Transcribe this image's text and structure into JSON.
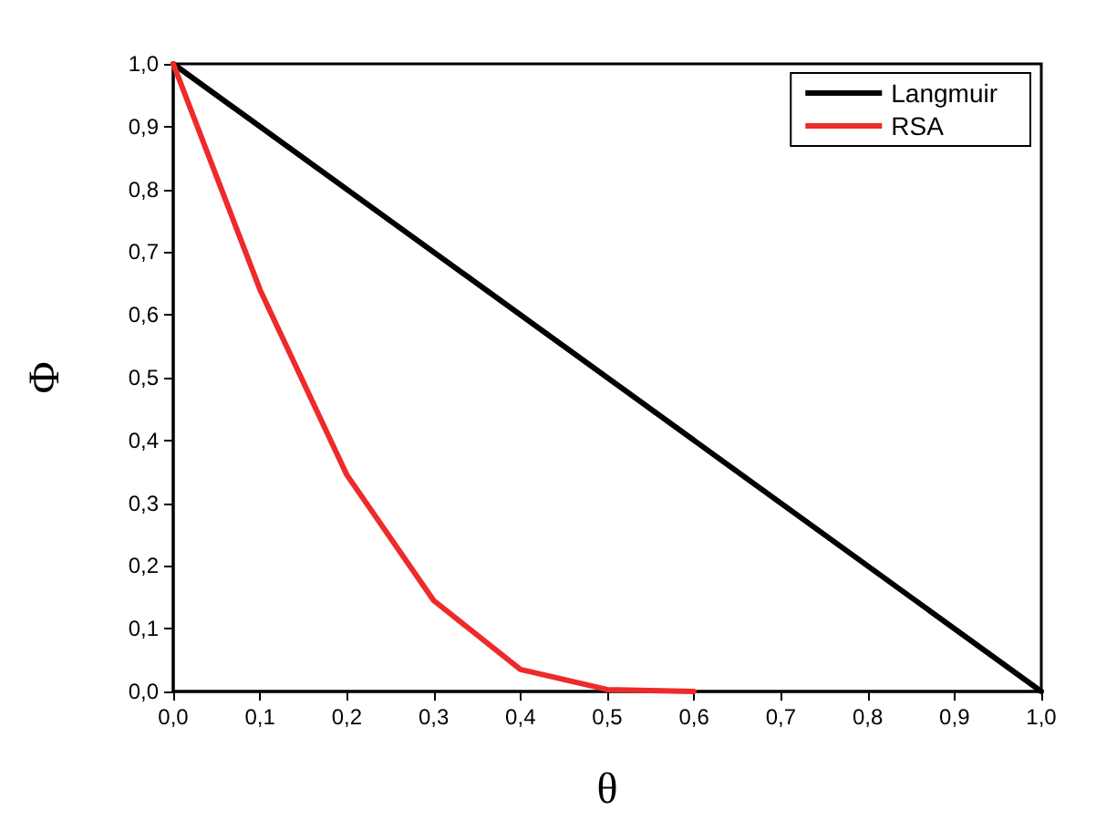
{
  "chart_data": {
    "type": "line",
    "xlabel": "θ",
    "ylabel": "Φ",
    "xlim": [
      0,
      1
    ],
    "ylim": [
      0,
      1
    ],
    "xticks": [
      {
        "value": 0,
        "label": "0,0"
      },
      {
        "value": 0.1,
        "label": "0,1"
      },
      {
        "value": 0.2,
        "label": "0,2"
      },
      {
        "value": 0.3,
        "label": "0,3"
      },
      {
        "value": 0.4,
        "label": "0,4"
      },
      {
        "value": 0.5,
        "label": "0,5"
      },
      {
        "value": 0.6,
        "label": "0,6"
      },
      {
        "value": 0.7,
        "label": "0,7"
      },
      {
        "value": 0.8,
        "label": "0,8"
      },
      {
        "value": 0.9,
        "label": "0,9"
      },
      {
        "value": 1,
        "label": "1,0"
      }
    ],
    "yticks": [
      {
        "value": 0,
        "label": "0,0"
      },
      {
        "value": 0.1,
        "label": "0,1"
      },
      {
        "value": 0.2,
        "label": "0,2"
      },
      {
        "value": 0.3,
        "label": "0,3"
      },
      {
        "value": 0.4,
        "label": "0,4"
      },
      {
        "value": 0.5,
        "label": "0,5"
      },
      {
        "value": 0.6,
        "label": "0,6"
      },
      {
        "value": 0.7,
        "label": "0,7"
      },
      {
        "value": 0.8,
        "label": "0,8"
      },
      {
        "value": 0.9,
        "label": "0,9"
      },
      {
        "value": 1,
        "label": "1,0"
      }
    ],
    "series": [
      {
        "name": "Langmuir",
        "color": "#000000",
        "x": [
          0,
          1
        ],
        "values": [
          1,
          0
        ]
      },
      {
        "name": "RSA",
        "color": "#ee2a2a",
        "x": [
          0,
          0.1,
          0.2,
          0.3,
          0.4,
          0.5,
          0.6
        ],
        "values": [
          1,
          0.64,
          0.345,
          0.145,
          0.035,
          0.003,
          0
        ]
      }
    ],
    "legend": "top right",
    "grid": false,
    "marker": "none",
    "line_style": "solid"
  }
}
